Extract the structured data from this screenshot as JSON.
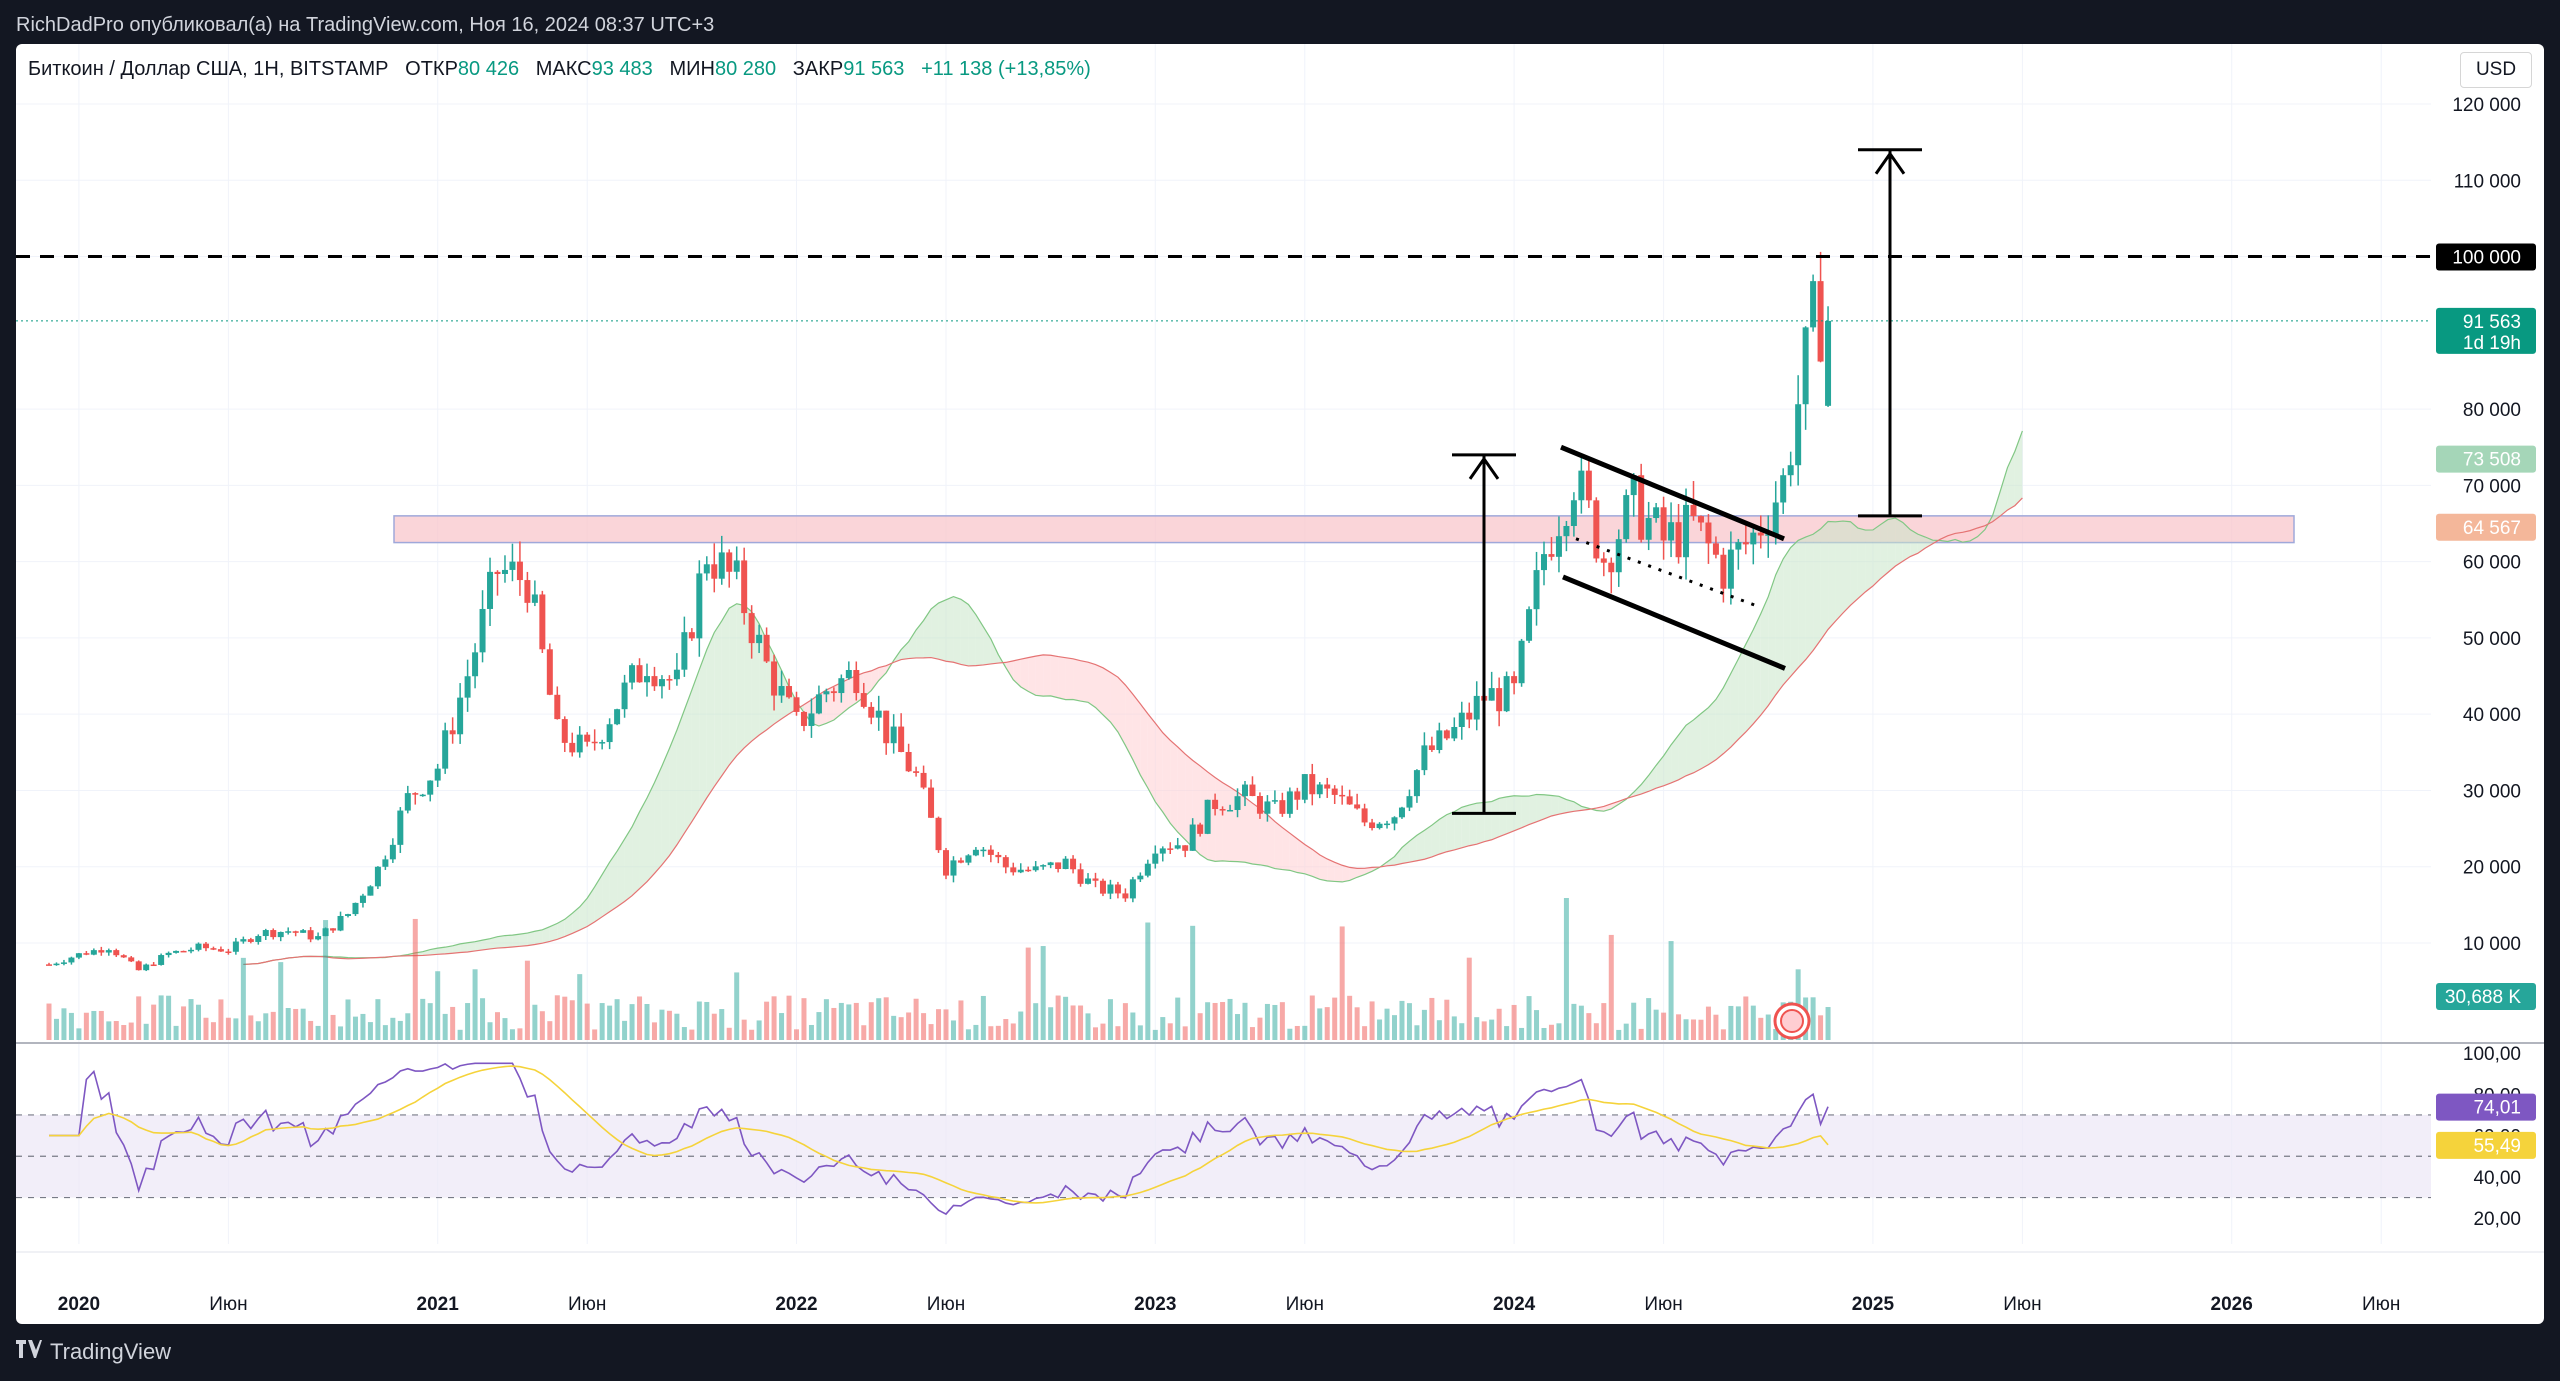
{
  "topbar": {
    "text": "RichDadPro опубликовал(а) на TradingView.com, Ноя 16, 2024 08:37 UTC+3"
  },
  "header": {
    "symbol": "Биткоин / Доллар США, 1Н, BITSTAMP",
    "open_label": "ОТКР",
    "open_value": "80 426",
    "high_label": "МАКС",
    "high_value": "93 483",
    "low_label": "МИН",
    "low_value": "80 280",
    "close_label": "ЗАКР",
    "close_value": "91 563",
    "change": "+11 138 (+13,85%)"
  },
  "currency": "USD",
  "footer": {
    "logo_text": "TradingView"
  },
  "colors": {
    "up": "#26a69a",
    "down": "#ef5350",
    "rsi": "#7e57c2",
    "rsi_ma": "#f5d33b",
    "accent": "#089981"
  },
  "price_axis": {
    "ticks": [
      "120 000",
      "110 000",
      "100 000",
      "80 000",
      "70 000",
      "60 000",
      "50 000",
      "40 000",
      "30 000",
      "20 000",
      "10 000"
    ],
    "labels": [
      {
        "text": "100 000",
        "value": 100000,
        "color": "#000000"
      },
      {
        "text": "91 563",
        "sub": "1d 19h",
        "value": 91563,
        "color": "#089981"
      },
      {
        "text": "73 508",
        "value": 73508,
        "color": "#a5d6b8",
        "dark": true
      },
      {
        "text": "64 567",
        "value": 64567,
        "color": "#f4b79a",
        "dark": true
      }
    ]
  },
  "volume_label": "30,688 K",
  "rsi_axis": {
    "ticks": [
      "100,00",
      "80,00",
      "60,00",
      "40,00",
      "20,00"
    ],
    "labels": [
      {
        "text": "74,01",
        "value": 74.01,
        "color": "#7e57c2"
      },
      {
        "text": "55,49",
        "value": 55.49,
        "color": "#f5d33b",
        "dark": true
      }
    ]
  },
  "time_axis": [
    {
      "text": "2020",
      "bold": true
    },
    {
      "text": "Июн"
    },
    {
      "text": "2021",
      "bold": true
    },
    {
      "text": "Июн"
    },
    {
      "text": "2022",
      "bold": true
    },
    {
      "text": "Июн"
    },
    {
      "text": "2023",
      "bold": true
    },
    {
      "text": "Июн"
    },
    {
      "text": "2024",
      "bold": true
    },
    {
      "text": "Июн"
    },
    {
      "text": "2025",
      "bold": true
    },
    {
      "text": "Июн"
    },
    {
      "text": "2026",
      "bold": true
    },
    {
      "text": "Июн"
    }
  ],
  "chart_data": {
    "type": "candlestick",
    "title": "Биткоин / Доллар США, 1Н, BITSTAMP",
    "ylim": [
      0,
      125000
    ],
    "yscale": "linear",
    "x_range": [
      "2019-12",
      "2026-09"
    ],
    "close_series": [
      [
        "2019-12",
        7200
      ],
      [
        "2020-01",
        8500
      ],
      [
        "2020-02",
        9500
      ],
      [
        "2020-03",
        6400
      ],
      [
        "2020-04",
        8600
      ],
      [
        "2020-05",
        9400
      ],
      [
        "2020-06",
        9100
      ],
      [
        "2020-07",
        11300
      ],
      [
        "2020-08",
        11600
      ],
      [
        "2020-09",
        10700
      ],
      [
        "2020-10",
        13800
      ],
      [
        "2020-11",
        19700
      ],
      [
        "2020-12",
        28900
      ],
      [
        "2021-01",
        33100
      ],
      [
        "2021-02",
        45200
      ],
      [
        "2021-03",
        58800
      ],
      [
        "2021-04",
        57700
      ],
      [
        "2021-05",
        37300
      ],
      [
        "2021-06",
        35000
      ],
      [
        "2021-07",
        41500
      ],
      [
        "2021-08",
        47100
      ],
      [
        "2021-09",
        43800
      ],
      [
        "2021-10",
        61300
      ],
      [
        "2021-11",
        57000
      ],
      [
        "2021-12",
        46300
      ],
      [
        "2022-01",
        38500
      ],
      [
        "2022-02",
        43200
      ],
      [
        "2022-03",
        45500
      ],
      [
        "2022-04",
        37700
      ],
      [
        "2022-05",
        31800
      ],
      [
        "2022-06",
        19900
      ],
      [
        "2022-07",
        23300
      ],
      [
        "2022-08",
        20000
      ],
      [
        "2022-09",
        19400
      ],
      [
        "2022-10",
        20500
      ],
      [
        "2022-11",
        17200
      ],
      [
        "2022-12",
        16500
      ],
      [
        "2023-01",
        23100
      ],
      [
        "2023-02",
        23100
      ],
      [
        "2023-03",
        28500
      ],
      [
        "2023-04",
        29200
      ],
      [
        "2023-05",
        27200
      ],
      [
        "2023-06",
        30500
      ],
      [
        "2023-07",
        29200
      ],
      [
        "2023-08",
        25900
      ],
      [
        "2023-09",
        27000
      ],
      [
        "2023-10",
        34500
      ],
      [
        "2023-11",
        37700
      ],
      [
        "2023-12",
        42300
      ],
      [
        "2024-01",
        42600
      ],
      [
        "2024-02",
        61200
      ],
      [
        "2024-03",
        71300
      ],
      [
        "2024-04",
        60600
      ],
      [
        "2024-05",
        67500
      ],
      [
        "2024-06",
        62700
      ],
      [
        "2024-07",
        64600
      ],
      [
        "2024-08",
        59000
      ],
      [
        "2024-09",
        63300
      ],
      [
        "2024-10",
        70300
      ],
      [
        "2024-11",
        91563
      ]
    ],
    "series": [
      {
        "name": "RSI",
        "last": 74.01
      },
      {
        "name": "RSI MA",
        "last": 55.49
      }
    ],
    "annotations": {
      "horizontal_dashed_level": 100000,
      "resistance_zone": [
        62500,
        66000
      ],
      "flag_upper": [
        [
          "2024-03",
          75000
        ],
        [
          "2024-10",
          63000
        ]
      ],
      "flag_lower": [
        [
          "2024-03",
          58000
        ],
        [
          "2024-10",
          46000
        ]
      ],
      "pole_measure": [
        27000,
        74000
      ],
      "target_measure": [
        66000,
        114000
      ]
    },
    "rsi_ylim": [
      20,
      100
    ],
    "rsi_band": [
      30,
      70
    ]
  }
}
